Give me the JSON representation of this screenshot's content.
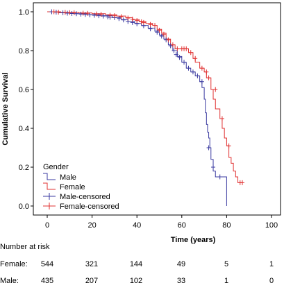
{
  "chart_data": {
    "type": "line",
    "title": "",
    "xlabel": "Time (years)",
    "ylabel": "Cumulative Survival",
    "xlim": [
      0,
      100
    ],
    "ylim": [
      0,
      1.0
    ],
    "xticks": [
      "0",
      "20",
      "40",
      "60",
      "80",
      "100"
    ],
    "yticks": [
      "0.0",
      "0.2",
      "0.4",
      "0.6",
      "0.8",
      "1.0"
    ],
    "legend": {
      "title": "Gender",
      "position": "bottom-left",
      "entries": [
        "Male",
        "Female",
        "Male-censored",
        "Female-censored"
      ]
    },
    "colors": {
      "male": "#3a3aa0",
      "female": "#e03030"
    },
    "series": [
      {
        "name": "Male",
        "color": "#3a3aa0",
        "steps": [
          [
            0,
            1.0
          ],
          [
            5,
            0.995
          ],
          [
            12,
            0.99
          ],
          [
            18,
            0.985
          ],
          [
            24,
            0.98
          ],
          [
            29,
            0.97
          ],
          [
            33,
            0.96
          ],
          [
            36,
            0.95
          ],
          [
            39,
            0.94
          ],
          [
            42,
            0.93
          ],
          [
            45,
            0.915
          ],
          [
            48,
            0.9
          ],
          [
            50,
            0.88
          ],
          [
            52,
            0.86
          ],
          [
            54,
            0.83
          ],
          [
            56,
            0.8
          ],
          [
            58,
            0.77
          ],
          [
            60,
            0.74
          ],
          [
            62,
            0.71
          ],
          [
            64,
            0.69
          ],
          [
            66,
            0.67
          ],
          [
            68,
            0.64
          ],
          [
            69,
            0.61
          ],
          [
            70,
            0.55
          ],
          [
            70.5,
            0.48
          ],
          [
            71,
            0.42
          ],
          [
            71.5,
            0.38
          ],
          [
            72,
            0.35
          ],
          [
            72.5,
            0.3
          ],
          [
            73,
            0.24
          ],
          [
            74,
            0.18
          ],
          [
            75,
            0.15
          ],
          [
            79,
            0.15
          ],
          [
            80,
            0.0
          ]
        ],
        "end": 80
      },
      {
        "name": "Female",
        "color": "#e03030",
        "steps": [
          [
            0,
            1.0
          ],
          [
            6,
            0.997
          ],
          [
            14,
            0.994
          ],
          [
            20,
            0.99
          ],
          [
            26,
            0.985
          ],
          [
            31,
            0.978
          ],
          [
            35,
            0.97
          ],
          [
            38,
            0.96
          ],
          [
            41,
            0.95
          ],
          [
            44,
            0.94
          ],
          [
            47,
            0.93
          ],
          [
            49,
            0.91
          ],
          [
            51,
            0.89
          ],
          [
            53,
            0.86
          ],
          [
            55,
            0.83
          ],
          [
            57,
            0.81
          ],
          [
            63,
            0.79
          ],
          [
            65,
            0.76
          ],
          [
            66,
            0.74
          ],
          [
            68,
            0.71
          ],
          [
            70,
            0.69
          ],
          [
            71,
            0.66
          ],
          [
            73,
            0.6
          ],
          [
            74,
            0.55
          ],
          [
            75,
            0.5
          ],
          [
            77,
            0.45
          ],
          [
            78,
            0.4
          ],
          [
            79,
            0.35
          ],
          [
            80,
            0.31
          ],
          [
            81,
            0.25
          ],
          [
            82,
            0.22
          ],
          [
            83,
            0.18
          ],
          [
            84,
            0.15
          ],
          [
            85,
            0.12
          ]
        ],
        "end": 87
      }
    ],
    "censored": {
      "Male": [
        [
          2,
          1.0
        ],
        [
          4,
          0.998
        ],
        [
          7,
          0.995
        ],
        [
          9,
          0.993
        ],
        [
          11,
          0.991
        ],
        [
          13,
          0.99
        ],
        [
          15,
          0.988
        ],
        [
          17,
          0.986
        ],
        [
          19,
          0.984
        ],
        [
          21,
          0.982
        ],
        [
          23,
          0.98
        ],
        [
          25,
          0.978
        ],
        [
          27,
          0.974
        ],
        [
          28,
          0.972
        ],
        [
          30,
          0.97
        ],
        [
          32,
          0.965
        ],
        [
          34,
          0.958
        ],
        [
          36,
          0.95
        ],
        [
          38,
          0.945
        ],
        [
          40,
          0.938
        ],
        [
          43,
          0.928
        ],
        [
          46,
          0.912
        ],
        [
          49,
          0.895
        ],
        [
          51,
          0.875
        ],
        [
          53,
          0.855
        ],
        [
          55,
          0.825
        ],
        [
          56.5,
          0.8
        ],
        [
          57.5,
          0.78
        ],
        [
          59,
          0.765
        ],
        [
          61,
          0.74
        ],
        [
          63,
          0.71
        ],
        [
          65,
          0.69
        ],
        [
          67,
          0.67
        ],
        [
          69,
          0.64
        ],
        [
          72,
          0.3
        ],
        [
          74,
          0.2
        ],
        [
          77,
          0.15
        ]
      ],
      "Female": [
        [
          3,
          1.0
        ],
        [
          5,
          0.998
        ],
        [
          8,
          0.997
        ],
        [
          10,
          0.996
        ],
        [
          12,
          0.995
        ],
        [
          16,
          0.993
        ],
        [
          18,
          0.992
        ],
        [
          22,
          0.989
        ],
        [
          24,
          0.987
        ],
        [
          28,
          0.982
        ],
        [
          30,
          0.98
        ],
        [
          33,
          0.975
        ],
        [
          36,
          0.968
        ],
        [
          38,
          0.962
        ],
        [
          40,
          0.955
        ],
        [
          42,
          0.948
        ],
        [
          43,
          0.945
        ],
        [
          46,
          0.935
        ],
        [
          48,
          0.93
        ],
        [
          50,
          0.905
        ],
        [
          52,
          0.885
        ],
        [
          54,
          0.855
        ],
        [
          56,
          0.83
        ],
        [
          58,
          0.81
        ],
        [
          60,
          0.81
        ],
        [
          61,
          0.81
        ],
        [
          62,
          0.81
        ],
        [
          64,
          0.79
        ],
        [
          66,
          0.76
        ],
        [
          69,
          0.71
        ],
        [
          71,
          0.69
        ],
        [
          72,
          0.66
        ],
        [
          75,
          0.6
        ],
        [
          78,
          0.45
        ],
        [
          81,
          0.31
        ],
        [
          86,
          0.12
        ],
        [
          87,
          0.12
        ]
      ]
    }
  },
  "risk_table": {
    "title": "Number at risk",
    "rows": [
      {
        "label": "Female:",
        "values": [
          "544",
          "321",
          "144",
          "49",
          "5",
          "1"
        ]
      },
      {
        "label": "Male:",
        "values": [
          "435",
          "207",
          "102",
          "33",
          "1",
          "0"
        ]
      }
    ]
  }
}
